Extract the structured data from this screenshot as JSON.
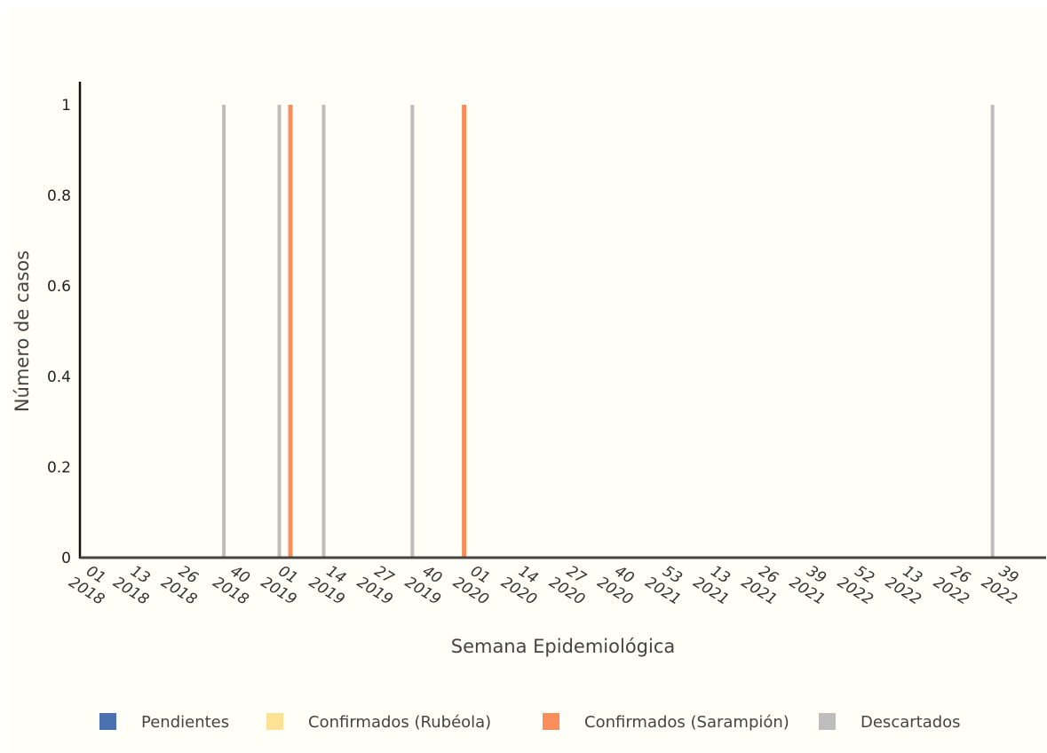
{
  "chart_data": {
    "type": "bar",
    "title": "",
    "xlabel": "Semana Epidemiológica",
    "ylabel": "Número de casos",
    "ylim": [
      0,
      1
    ],
    "yticks": [
      "0",
      "0.2",
      "0.4",
      "0.6",
      "0.8",
      "1"
    ],
    "xticks": [
      {
        "week": "01",
        "year": "2018"
      },
      {
        "week": "13",
        "year": "2018"
      },
      {
        "week": "26",
        "year": "2018"
      },
      {
        "week": "40",
        "year": "2018"
      },
      {
        "week": "01",
        "year": "2019"
      },
      {
        "week": "14",
        "year": "2019"
      },
      {
        "week": "27",
        "year": "2019"
      },
      {
        "week": "40",
        "year": "2019"
      },
      {
        "week": "01",
        "year": "2020"
      },
      {
        "week": "14",
        "year": "2020"
      },
      {
        "week": "27",
        "year": "2020"
      },
      {
        "week": "40",
        "year": "2020"
      },
      {
        "week": "53",
        "year": "2021"
      },
      {
        "week": "13",
        "year": "2021"
      },
      {
        "week": "26",
        "year": "2021"
      },
      {
        "week": "39",
        "year": "2021"
      },
      {
        "week": "52",
        "year": "2022"
      },
      {
        "week": "13",
        "year": "2022"
      },
      {
        "week": "26",
        "year": "2022"
      },
      {
        "week": "39",
        "year": "2022"
      }
    ],
    "grid": false,
    "legend_position": "bottom",
    "series": [
      {
        "name": "Pendientes",
        "color": "#4a72b0",
        "points": []
      },
      {
        "name": "Confirmados (Rubéola)",
        "color": "#fde295",
        "points": []
      },
      {
        "name": "Confirmados (Sarampión)",
        "color": "#f98e5a",
        "points": [
          {
            "week": "05",
            "year": "2019",
            "value": 1
          },
          {
            "week": "52",
            "year": "2019",
            "value": 1
          }
        ]
      },
      {
        "name": "Descartados",
        "color": "#bdbdbd",
        "points": [
          {
            "week": "39",
            "year": "2018",
            "value": 1
          },
          {
            "week": "02",
            "year": "2019",
            "value": 1
          },
          {
            "week": "14",
            "year": "2019",
            "value": 1
          },
          {
            "week": "38",
            "year": "2019",
            "value": 1
          },
          {
            "week": "38",
            "year": "2022",
            "value": 1
          }
        ]
      }
    ]
  }
}
